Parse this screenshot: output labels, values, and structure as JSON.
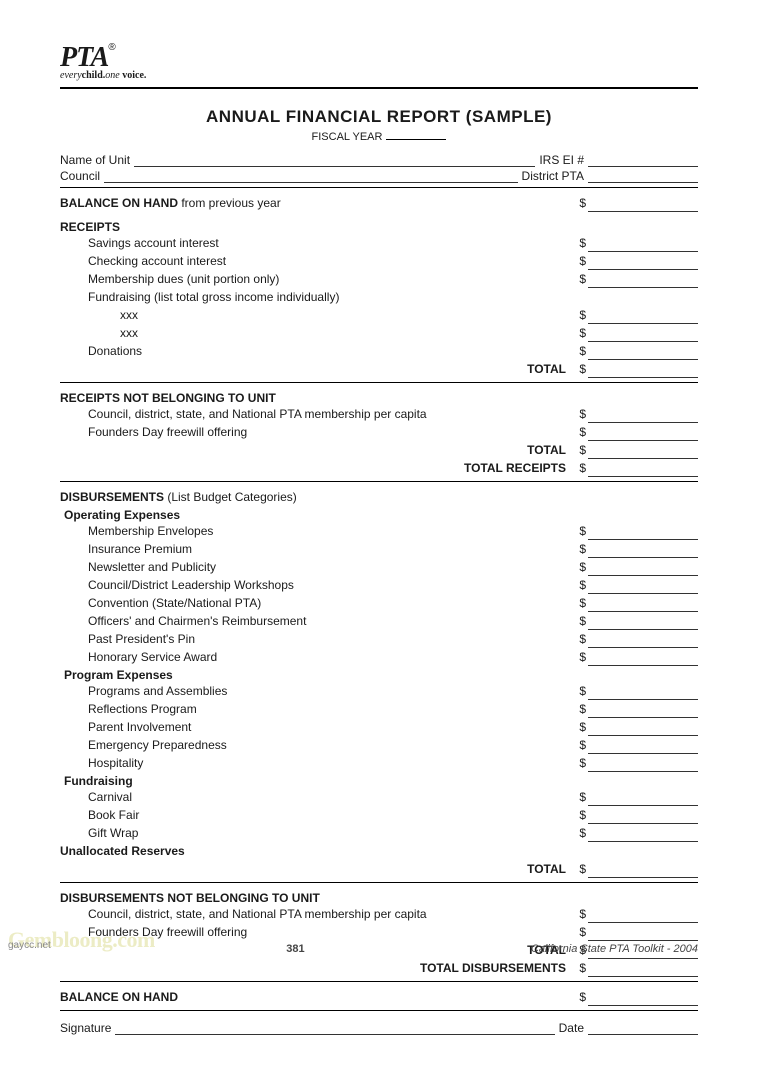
{
  "logo": {
    "text": "PTA",
    "registered": "®",
    "tagline_prefix": "every",
    "tagline_bold1": "child.",
    "tagline_italic": "one ",
    "tagline_bold2": "voice."
  },
  "title": "ANNUAL FINANCIAL REPORT (SAMPLE)",
  "fiscal_label": "FISCAL YEAR",
  "header": {
    "name_of_unit": "Name of Unit",
    "irs_ei": "IRS EI #",
    "council": "Council",
    "district_pta": "District PTA"
  },
  "balance_prev": {
    "bold": "BALANCE ON HAND",
    "rest": " from previous year"
  },
  "receipts": {
    "heading": "RECEIPTS",
    "items": [
      "Savings account interest",
      "Checking account interest",
      "Membership dues (unit portion only)",
      "Fundraising (list total gross income individually)"
    ],
    "xxx": "xxx",
    "donations": "Donations",
    "total": "TOTAL"
  },
  "receipts_not_unit": {
    "heading": "RECEIPTS NOT BELONGING TO UNIT",
    "items": [
      "Council, district, state, and National PTA membership per capita",
      "Founders Day freewill offering"
    ],
    "total": "TOTAL",
    "total_receipts": "TOTAL RECEIPTS"
  },
  "disbursements": {
    "heading_bold": "DISBURSEMENTS",
    "heading_note": " (List Budget Categories)",
    "operating": {
      "heading": "Operating Expenses",
      "items": [
        "Membership Envelopes",
        "Insurance Premium",
        "Newsletter and Publicity",
        "Council/District Leadership Workshops",
        "Convention (State/National PTA)",
        "Officers' and Chairmen's Reimbursement",
        "Past President's Pin",
        "Honorary Service Award"
      ]
    },
    "program": {
      "heading": "Program Expenses",
      "items": [
        "Programs and Assemblies",
        "Reflections Program",
        "Parent Involvement",
        "Emergency Preparedness",
        "Hospitality"
      ]
    },
    "fundraising": {
      "heading": "Fundraising",
      "items": [
        "Carnival",
        "Book Fair",
        "Gift Wrap"
      ]
    },
    "unallocated": "Unallocated Reserves",
    "total": "TOTAL"
  },
  "disb_not_unit": {
    "heading": "DISBURSEMENTS NOT BELONGING TO UNIT",
    "items": [
      "Council, district, state, and National PTA membership per capita",
      "Founders Day freewill offering"
    ],
    "total": "TOTAL",
    "total_disb": "TOTAL DISBURSEMENTS"
  },
  "balance_on_hand": "BALANCE ON HAND",
  "signature": {
    "sig": "Signature",
    "date": "Date"
  },
  "footer": {
    "left": "gaycc.net",
    "page": "381",
    "right": "California State PTA Toolkit - 2004"
  },
  "watermark": "Gembloong.com",
  "colors": {
    "text": "#1a1a1a",
    "rule": "#000000",
    "watermark": "#e0e0a0"
  }
}
